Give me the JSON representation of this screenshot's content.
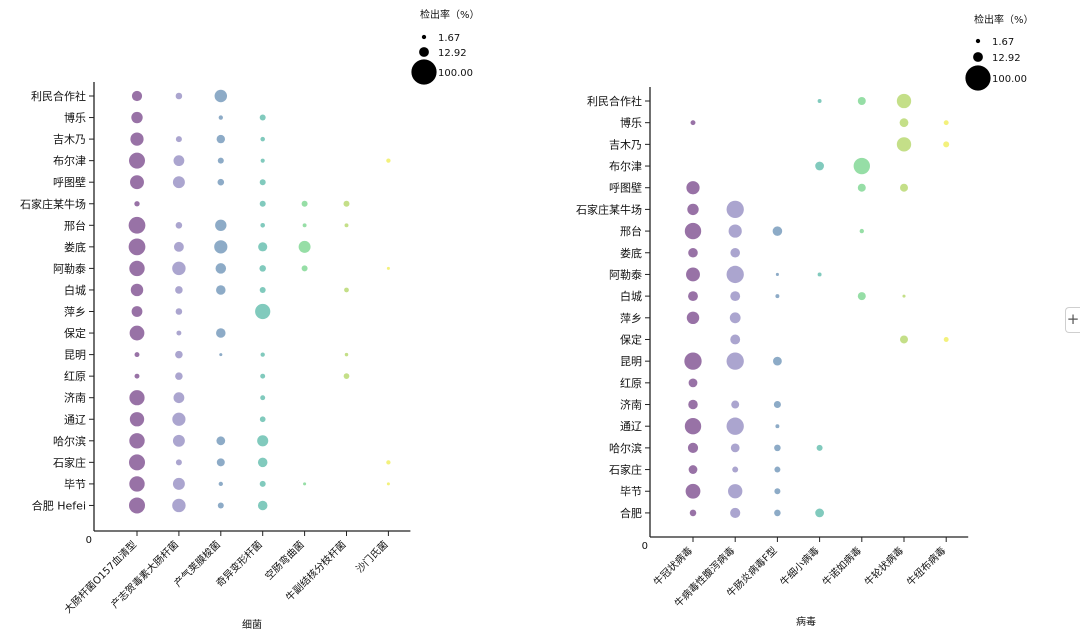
{
  "chart_data": [
    {
      "type": "bubble",
      "xlabel": "细菌",
      "origin_label": "0",
      "legend": {
        "title": "检出率（%）",
        "sizes": [
          "1.67",
          "12.92",
          "100.00"
        ]
      },
      "locations": [
        "利民合作社",
        "博乐",
        "吉木乃",
        "布尔津",
        "呼图壁",
        "石家庄某牛场",
        "邢台",
        "娄底",
        "阿勒泰",
        "白城",
        "萍乡",
        "保定",
        "昆明",
        "红原",
        "济南",
        "通辽",
        "哈尔滨",
        "石家庄",
        "毕节",
        "合肥 Hefei"
      ],
      "pathogens": [
        "大肠杆菌O157血清型",
        "产志贺毒素大肠杆菌",
        "产气荚膜梭菌",
        "奇异变形杆菌",
        "空肠弯曲菌",
        "牛副结核分枝杆菌",
        "沙门氏菌"
      ],
      "colors": [
        "#8a5e9a",
        "#9f99c8",
        "#7d9fbf",
        "#6fc3b4",
        "#87d99a",
        "#bcdb78",
        "#f1ef6a"
      ],
      "rates": [
        [
          14,
          5,
          22,
          null,
          null,
          null,
          null
        ],
        [
          18,
          null,
          1.7,
          4,
          null,
          null,
          null
        ],
        [
          25,
          4,
          9,
          1.9,
          null,
          null,
          null
        ],
        [
          38,
          16,
          4,
          1.5,
          null,
          null,
          1.7
        ],
        [
          28,
          20,
          5,
          4,
          null,
          null,
          null
        ],
        [
          3,
          null,
          null,
          4,
          4,
          4,
          null
        ],
        [
          42,
          5,
          18,
          2,
          1.3,
          1.3,
          null
        ],
        [
          42,
          13,
          25,
          11,
          20,
          null,
          null
        ],
        [
          35,
          26,
          15,
          5,
          4,
          null,
          0.6
        ],
        [
          22,
          7,
          12,
          4,
          null,
          2.2,
          null
        ],
        [
          16,
          5,
          null,
          34,
          null,
          null,
          null
        ],
        [
          32,
          2.4,
          12,
          null,
          null,
          null,
          null
        ],
        [
          2.4,
          7,
          0.6,
          1.7,
          null,
          0.9,
          null
        ],
        [
          2.4,
          7,
          null,
          2.4,
          null,
          3.5,
          null
        ],
        [
          34,
          16,
          null,
          2.4,
          null,
          null,
          null
        ],
        [
          30,
          25,
          null,
          3.5,
          null,
          null,
          null
        ],
        [
          35,
          20,
          10,
          17,
          null,
          null,
          null
        ],
        [
          38,
          4,
          8,
          12,
          null,
          null,
          1.7
        ],
        [
          35,
          20,
          1.7,
          4,
          0.6,
          null,
          0.6
        ],
        [
          38,
          26,
          4,
          12,
          null,
          null,
          null
        ]
      ]
    },
    {
      "type": "bubble",
      "xlabel": "病毒",
      "origin_label": "0",
      "legend": {
        "title": "检出率（%）",
        "sizes": [
          "1.67",
          "12.92",
          "100.00"
        ]
      },
      "locations": [
        "利民合作社",
        "博乐",
        "吉木乃",
        "布尔津",
        "呼图壁",
        "石家庄某牛场",
        "邢台",
        "娄底",
        "阿勒泰",
        "白城",
        "萍乡",
        "保定",
        "昆明",
        "红原",
        "济南",
        "通辽",
        "哈尔滨",
        "石家庄",
        "毕节",
        "合肥"
      ],
      "pathogens": [
        "牛冠状病毒",
        "牛病毒性腹泻病毒",
        "牛肠炎病毒F型",
        "牛细小病毒",
        "牛诺如病毒",
        "牛轮状病毒",
        "牛纽布病毒"
      ],
      "colors": [
        "#8a5e9a",
        "#9f99c8",
        "#7d9fbf",
        "#6fc3b4",
        "#87d99a",
        "#bcdb78",
        "#f1ef6a"
      ],
      "rates": [
        [
          null,
          null,
          null,
          1.3,
          8,
          30,
          null
        ],
        [
          2.4,
          null,
          null,
          null,
          null,
          10,
          2.4
        ],
        [
          null,
          null,
          null,
          null,
          null,
          30,
          4
        ],
        [
          null,
          null,
          null,
          10,
          40,
          null,
          null
        ],
        [
          25,
          null,
          null,
          null,
          8,
          8,
          null
        ],
        [
          18,
          45,
          null,
          null,
          null,
          null,
          null
        ],
        [
          40,
          25,
          12,
          null,
          1.7,
          null,
          null
        ],
        [
          12,
          12,
          null,
          null,
          null,
          null,
          null
        ],
        [
          28,
          45,
          0.6,
          1.3,
          null,
          null,
          null
        ],
        [
          13,
          13,
          1.3,
          null,
          8,
          0.6,
          null
        ],
        [
          22,
          16,
          null,
          null,
          null,
          null,
          null
        ],
        [
          null,
          13,
          null,
          null,
          null,
          8,
          2.4
        ],
        [
          45,
          45,
          10,
          null,
          null,
          null,
          null
        ],
        [
          10,
          null,
          null,
          null,
          null,
          null,
          null
        ],
        [
          12,
          8,
          6,
          null,
          null,
          null,
          null
        ],
        [
          40,
          45,
          1.3,
          null,
          null,
          null,
          null
        ],
        [
          14,
          10,
          5,
          4,
          null,
          null,
          null
        ],
        [
          10,
          4,
          4,
          null,
          null,
          null,
          null
        ],
        [
          32,
          30,
          4,
          null,
          null,
          null,
          null
        ],
        [
          5,
          14,
          5,
          10,
          null,
          null,
          null
        ]
      ]
    }
  ]
}
